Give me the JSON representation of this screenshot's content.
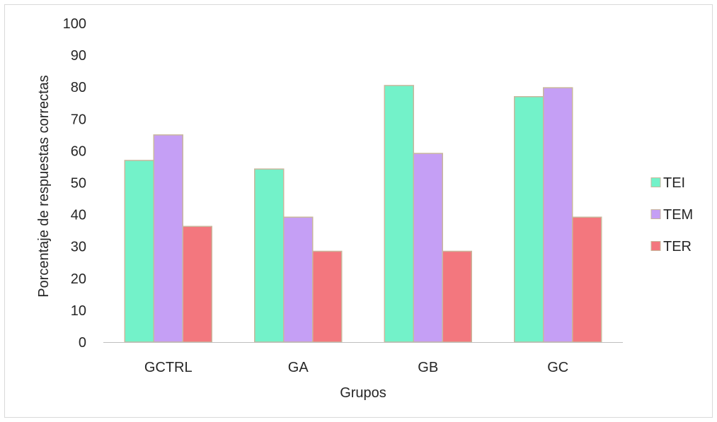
{
  "chart_data": {
    "type": "bar",
    "title": "",
    "xlabel": "Grupos",
    "ylabel": "Porcentaje de respuestas correctas",
    "categories": [
      "GCTRL",
      "GA",
      "GB",
      "GC"
    ],
    "series": [
      {
        "name": "TEI",
        "values": [
          57,
          54.3,
          80.5,
          77
        ],
        "color": "#73f2c9"
      },
      {
        "name": "TEM",
        "values": [
          65,
          39.2,
          59.2,
          79.8
        ],
        "color": "#c59ff5"
      },
      {
        "name": "TER",
        "values": [
          36.3,
          28.5,
          28.5,
          39.2
        ],
        "color": "#f3777e"
      }
    ],
    "ylim": [
      0,
      100
    ],
    "yticks": [
      "0",
      "10",
      "20",
      "30",
      "40",
      "50",
      "60",
      "70",
      "80",
      "90",
      "100"
    ],
    "grid": false,
    "legend_position": "right",
    "bar_edge_color": "#c9b79c"
  }
}
